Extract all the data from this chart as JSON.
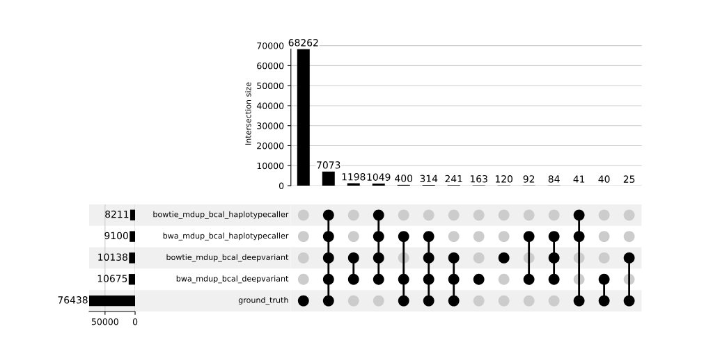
{
  "chart_data": [
    {
      "type": "bar",
      "ylabel": "Intersection size",
      "categories": [
        null,
        null,
        null,
        null,
        null,
        null,
        null,
        null,
        null,
        null,
        null,
        null,
        null,
        null
      ],
      "values": [
        68262,
        7073,
        1198,
        1049,
        400,
        314,
        241,
        163,
        120,
        92,
        84,
        41,
        40,
        25
      ],
      "color": "#000000",
      "ylim": [
        0,
        72000
      ],
      "yticks": [
        0,
        10000,
        20000,
        30000,
        40000,
        50000,
        60000,
        70000
      ],
      "grid": "y",
      "data_labels": true,
      "tick_labels": "y"
    },
    {
      "type": "bar",
      "orientation": "horizontal",
      "categories": [
        "bowtie_mdup_bcal_haplotypecaller",
        "bwa_mdup_bcal_haplotypecaller",
        "bowtie_mdup_bcal_deepvariant",
        "bwa_mdup_bcal_deepvariant",
        "ground_truth"
      ],
      "values": [
        8211,
        9100,
        10138,
        10675,
        76438
      ],
      "color": "#000000",
      "xlim": [
        76438,
        0
      ],
      "xticks": [
        50000,
        0
      ],
      "grid": "x",
      "data_labels": true
    },
    {
      "type": "other",
      "categories": [
        null,
        null,
        null,
        null,
        null,
        null,
        null,
        null,
        null,
        null,
        null,
        null,
        null,
        null
      ],
      "cells": [
        [
          false,
          true,
          false,
          true,
          false,
          false,
          false,
          false,
          false,
          false,
          false,
          true,
          false,
          false
        ],
        [
          false,
          true,
          false,
          true,
          true,
          true,
          false,
          false,
          false,
          true,
          true,
          true,
          false,
          false
        ],
        [
          false,
          true,
          true,
          true,
          false,
          true,
          true,
          false,
          true,
          false,
          true,
          false,
          false,
          true
        ],
        [
          false,
          true,
          true,
          true,
          true,
          true,
          true,
          true,
          false,
          true,
          true,
          false,
          true,
          false
        ],
        [
          true,
          true,
          false,
          false,
          true,
          true,
          true,
          false,
          false,
          false,
          false,
          true,
          true,
          true
        ]
      ],
      "colors": [
        "#cccccc",
        "#000000"
      ]
    }
  ]
}
